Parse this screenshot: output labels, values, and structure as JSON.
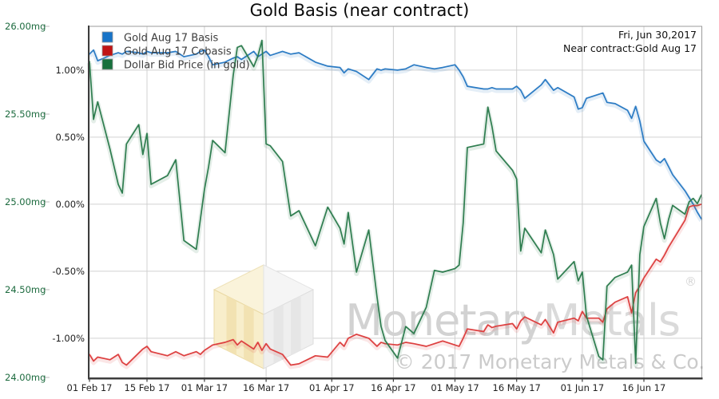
{
  "chart_data": {
    "type": "line",
    "title": "Gold Basis (near contract)",
    "annotation": {
      "line1": "Fri, Jun 30,2017",
      "line2": "Near contract:Gold Aug 17"
    },
    "legend_position": "top-left",
    "grid": true,
    "grid_color": "#d0d0d0",
    "x_range": [
      "2017-02-01",
      "2017-06-30"
    ],
    "x_ticks": [
      {
        "date": "2017-02-01",
        "label": "01 Feb 17"
      },
      {
        "date": "2017-02-15",
        "label": "15 Feb 17"
      },
      {
        "date": "2017-03-01",
        "label": "01 Mar 17"
      },
      {
        "date": "2017-03-16",
        "label": "16 Mar 17"
      },
      {
        "date": "2017-04-01",
        "label": "01 Apr 17"
      },
      {
        "date": "2017-04-16",
        "label": "16 Apr 17"
      },
      {
        "date": "2017-05-01",
        "label": "01 May 17"
      },
      {
        "date": "2017-05-16",
        "label": "16 May 17"
      },
      {
        "date": "2017-06-01",
        "label": "01 Jun 17"
      },
      {
        "date": "2017-06-16",
        "label": "16 Jun 17"
      }
    ],
    "y_axis_percent": {
      "position": "inner-left",
      "color": "#1c1c1c",
      "min": -1.292,
      "max": 1.327,
      "ticks": [
        {
          "value": 1.0,
          "label": "1.00%"
        },
        {
          "value": 0.5,
          "label": "0.50%"
        },
        {
          "value": 0.0,
          "label": "0.00%"
        },
        {
          "value": -0.5,
          "label": "-0.50%"
        },
        {
          "value": -1.0,
          "label": "-1.00%"
        }
      ]
    },
    "y_axis_mg": {
      "position": "outer-left",
      "color": "#1d6b3f",
      "min": 24.0,
      "max": 26.0,
      "ticks": [
        {
          "value": 26.0,
          "label": "26.00mg"
        },
        {
          "value": 25.5,
          "label": "25.50mg"
        },
        {
          "value": 25.0,
          "label": "25.00mg"
        },
        {
          "value": 24.5,
          "label": "24.50mg"
        },
        {
          "value": 24.0,
          "label": "24.00mg"
        }
      ]
    },
    "dates": [
      "2017-02-01",
      "2017-02-02",
      "2017-02-03",
      "2017-02-06",
      "2017-02-08",
      "2017-02-09",
      "2017-02-10",
      "2017-02-13",
      "2017-02-14",
      "2017-02-15",
      "2017-02-16",
      "2017-02-20",
      "2017-02-22",
      "2017-02-24",
      "2017-02-27",
      "2017-02-28",
      "2017-03-01",
      "2017-03-02",
      "2017-03-03",
      "2017-03-06",
      "2017-03-08",
      "2017-03-09",
      "2017-03-10",
      "2017-03-13",
      "2017-03-14",
      "2017-03-15",
      "2017-03-16",
      "2017-03-17",
      "2017-03-20",
      "2017-03-22",
      "2017-03-24",
      "2017-03-28",
      "2017-03-31",
      "2017-04-03",
      "2017-04-04",
      "2017-04-05",
      "2017-04-07",
      "2017-04-10",
      "2017-04-12",
      "2017-04-13",
      "2017-04-14",
      "2017-04-17",
      "2017-04-19",
      "2017-04-21",
      "2017-04-24",
      "2017-04-26",
      "2017-04-28",
      "2017-05-01",
      "2017-05-02",
      "2017-05-03",
      "2017-05-04",
      "2017-05-08",
      "2017-05-09",
      "2017-05-10",
      "2017-05-11",
      "2017-05-15",
      "2017-05-16",
      "2017-05-17",
      "2017-05-18",
      "2017-05-22",
      "2017-05-23",
      "2017-05-25",
      "2017-05-26",
      "2017-05-30",
      "2017-05-31",
      "2017-06-01",
      "2017-06-02",
      "2017-06-05",
      "2017-06-06",
      "2017-06-07",
      "2017-06-09",
      "2017-06-12",
      "2017-06-13",
      "2017-06-14",
      "2017-06-15",
      "2017-06-16",
      "2017-06-19",
      "2017-06-20",
      "2017-06-21",
      "2017-06-22",
      "2017-06-23",
      "2017-06-26",
      "2017-06-27",
      "2017-06-28",
      "2017-06-29",
      "2017-06-30"
    ],
    "series": [
      {
        "name": "Gold Aug 17 Basis",
        "axis": "percent",
        "color": "#2b7bc4",
        "legend_color": "#1874c8",
        "values": [
          1.12,
          1.15,
          1.07,
          1.11,
          1.13,
          1.12,
          1.14,
          1.13,
          1.12,
          1.14,
          1.13,
          1.13,
          1.14,
          1.1,
          1.12,
          1.14,
          1.15,
          1.1,
          1.04,
          1.06,
          1.09,
          1.1,
          1.08,
          1.14,
          1.1,
          1.12,
          1.14,
          1.11,
          1.14,
          1.12,
          1.13,
          1.06,
          1.03,
          1.02,
          0.98,
          1.01,
          0.99,
          0.93,
          1.01,
          1.0,
          1.01,
          1.0,
          1.01,
          1.04,
          1.02,
          1.01,
          1.02,
          1.04,
          1.0,
          0.95,
          0.88,
          0.86,
          0.86,
          0.87,
          0.86,
          0.86,
          0.88,
          0.85,
          0.79,
          0.89,
          0.93,
          0.85,
          0.87,
          0.8,
          0.71,
          0.72,
          0.79,
          0.82,
          0.83,
          0.76,
          0.75,
          0.7,
          0.64,
          0.73,
          0.62,
          0.47,
          0.33,
          0.31,
          0.34,
          0.28,
          0.22,
          0.1,
          0.05,
          0.0,
          -0.06,
          -0.11
        ]
      },
      {
        "name": "Gold Aug 17 Cobasis",
        "axis": "percent",
        "color": "#dd3f3f",
        "legend_color": "#c01414",
        "values": [
          -1.12,
          -1.17,
          -1.14,
          -1.16,
          -1.12,
          -1.18,
          -1.2,
          -1.11,
          -1.08,
          -1.06,
          -1.1,
          -1.13,
          -1.1,
          -1.13,
          -1.1,
          -1.12,
          -1.09,
          -1.07,
          -1.05,
          -1.03,
          -1.01,
          -1.05,
          -1.02,
          -1.08,
          -1.03,
          -1.09,
          -1.04,
          -1.08,
          -1.12,
          -1.2,
          -1.19,
          -1.13,
          -1.14,
          -1.03,
          -1.06,
          -1.0,
          -0.97,
          -1.0,
          -1.06,
          -1.03,
          -1.04,
          -1.05,
          -1.03,
          -1.04,
          -1.06,
          -1.04,
          -1.02,
          -1.05,
          -1.06,
          -1.0,
          -0.93,
          -0.95,
          -0.9,
          -0.92,
          -0.91,
          -0.89,
          -0.93,
          -0.87,
          -0.84,
          -0.9,
          -0.86,
          -0.96,
          -0.88,
          -0.85,
          -0.87,
          -0.8,
          -0.85,
          -0.85,
          -0.88,
          -0.78,
          -0.73,
          -0.69,
          -0.81,
          -0.66,
          -0.61,
          -0.55,
          -0.41,
          -0.43,
          -0.38,
          -0.32,
          -0.27,
          -0.12,
          -0.02,
          -0.01,
          -0.01,
          0.0
        ]
      },
      {
        "name": "Dollar Bid Price (in gold)",
        "axis": "mg",
        "color": "#2e7d4f",
        "legend_color": "#17703c",
        "values": [
          25.8,
          25.47,
          25.57,
          25.3,
          25.1,
          25.05,
          25.33,
          25.44,
          25.27,
          25.39,
          25.1,
          25.15,
          25.24,
          24.78,
          24.73,
          24.9,
          25.07,
          25.2,
          25.35,
          25.28,
          25.72,
          25.88,
          25.89,
          25.77,
          25.83,
          25.92,
          25.33,
          25.32,
          25.23,
          24.92,
          24.95,
          24.75,
          24.97,
          24.85,
          24.76,
          24.94,
          24.6,
          24.84,
          24.46,
          24.29,
          24.21,
          24.11,
          24.29,
          24.25,
          24.4,
          24.61,
          24.6,
          24.62,
          24.64,
          24.88,
          25.31,
          25.33,
          25.54,
          25.43,
          25.29,
          25.18,
          25.13,
          24.72,
          24.85,
          24.71,
          24.84,
          24.7,
          24.56,
          24.66,
          24.55,
          24.6,
          24.35,
          24.12,
          24.1,
          24.52,
          24.57,
          24.6,
          24.64,
          24.08,
          24.7,
          24.86,
          25.02,
          24.88,
          24.79,
          24.9,
          24.98,
          24.93,
          25.0,
          25.02,
          24.99,
          25.04
        ]
      }
    ]
  },
  "watermark": {
    "brand_parts": [
      {
        "text": "Monetary",
        "color": "#d2d2d2"
      },
      {
        "text": "Metals",
        "color": "#dadada"
      }
    ],
    "registered": "®",
    "registered_color": "#d5d5d5",
    "copyright": "© 2017 Monetary Metals & Co.",
    "copyright_color": "#cbcbcb"
  }
}
